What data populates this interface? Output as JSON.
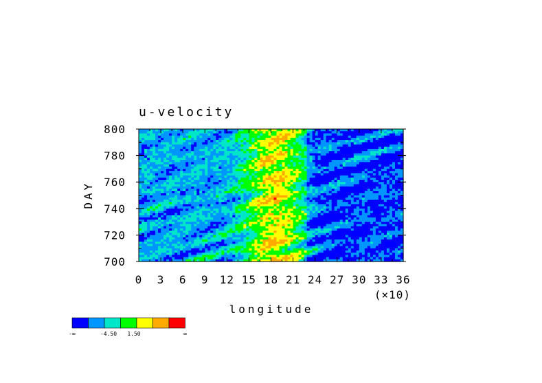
{
  "chart_data": {
    "type": "heatmap",
    "title": "u-velocity",
    "xlabel": "longitude",
    "ylabel": "DAY",
    "x_scale_note": "(×10)",
    "xlim": [
      0,
      36
    ],
    "ylim": [
      700,
      800
    ],
    "x_ticks": [
      "0",
      "3",
      "6",
      "9",
      "12",
      "15",
      "18",
      "21",
      "24",
      "27",
      "30",
      "33",
      "36"
    ],
    "y_ticks": [
      "700",
      "720",
      "740",
      "760",
      "780",
      "800"
    ],
    "colorbar": {
      "colors": [
        "#0000ff",
        "#0096ff",
        "#00e6c8",
        "#00ff00",
        "#ffff00",
        "#ffaa00",
        "#ff0000"
      ],
      "labels": [
        "-∞",
        "-4.50",
        "1.50",
        "∞"
      ]
    },
    "pattern_description_values": {
      "strong_positive_band_longitude": [
        15,
        22
      ],
      "negative_region_longitude": [
        23,
        36
      ]
    }
  }
}
